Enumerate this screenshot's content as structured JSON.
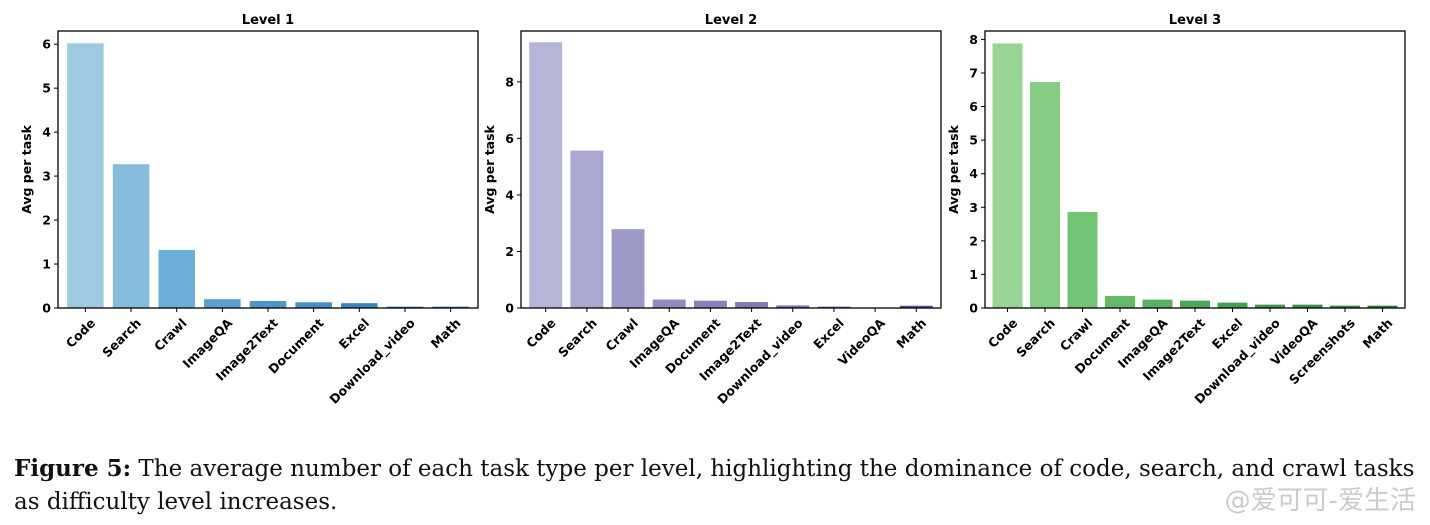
{
  "chart_data": [
    {
      "type": "bar",
      "title": "Level 1",
      "ylabel": "Avg per task",
      "categories": [
        "Code",
        "Search",
        "Crawl",
        "ImageQA",
        "Image2Text",
        "Document",
        "Excel",
        "Download_video",
        "Math"
      ],
      "values": [
        6.02,
        3.27,
        1.32,
        0.2,
        0.16,
        0.13,
        0.11,
        0.03,
        0.03
      ],
      "ylim": [
        0,
        6.3
      ],
      "yticks": [
        0,
        1,
        2,
        3,
        4,
        5,
        6
      ],
      "colors": [
        "#9ecae1",
        "#85bcdb",
        "#6baed6",
        "#5ba0d0",
        "#4d96c8",
        "#4292c6",
        "#3a85be",
        "#337ab6",
        "#2c6fad"
      ]
    },
    {
      "type": "bar",
      "title": "Level 2",
      "ylabel": "Avg per task",
      "categories": [
        "Code",
        "Search",
        "Crawl",
        "ImageQA",
        "Document",
        "Image2Text",
        "Download_video",
        "Excel",
        "VideoQA",
        "Math"
      ],
      "values": [
        9.4,
        5.57,
        2.79,
        0.3,
        0.26,
        0.21,
        0.09,
        0.05,
        0.0,
        0.08
      ],
      "ylim": [
        0,
        9.8
      ],
      "yticks": [
        0,
        2,
        4,
        6,
        8
      ],
      "colors": [
        "#b5b4d9",
        "#aaa7d1",
        "#9e9ac8",
        "#918dc1",
        "#8682bb",
        "#807ab6",
        "#7a71b1",
        "#7266ab",
        "#6a5aa4",
        "#61499d"
      ]
    },
    {
      "type": "bar",
      "title": "Level 3",
      "ylabel": "Avg per task",
      "categories": [
        "Code",
        "Search",
        "Crawl",
        "Document",
        "ImageQA",
        "Image2Text",
        "Excel",
        "Download_video",
        "VideoQA",
        "Screenshots",
        "Math"
      ],
      "values": [
        7.88,
        6.73,
        2.86,
        0.36,
        0.25,
        0.22,
        0.16,
        0.1,
        0.1,
        0.07,
        0.07
      ],
      "ylim": [
        0,
        8.25
      ],
      "yticks": [
        0,
        1,
        2,
        3,
        4,
        5,
        6,
        7,
        8
      ],
      "colors": [
        "#98d594",
        "#86cc85",
        "#74c476",
        "#64b96a",
        "#58b062",
        "#4fa85a",
        "#46a253",
        "#3e9a4d",
        "#379346",
        "#318b40",
        "#2b833a"
      ]
    }
  ],
  "caption": {
    "label": "Figure 5:",
    "text": " The average number of each task type per level, highlighting the dominance of code, search, and crawl tasks as difficulty level increases."
  },
  "watermark": "@爱可可-爱生活"
}
